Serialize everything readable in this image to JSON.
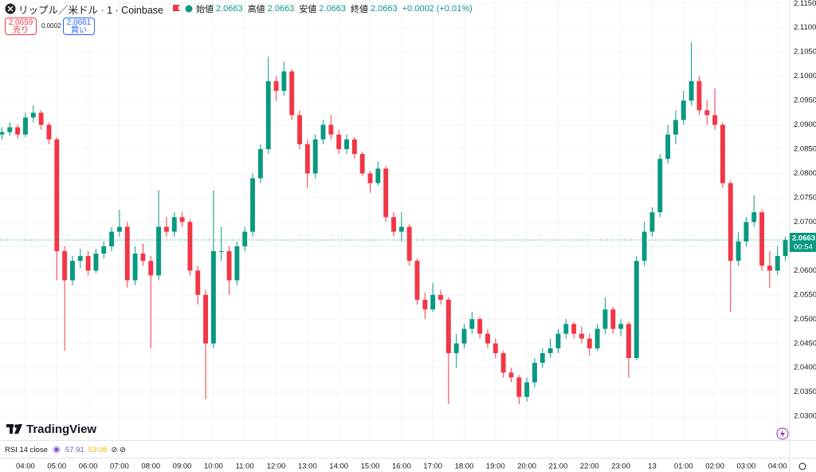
{
  "chart_data": {
    "type": "candlestick",
    "title": "リップル／米ドル · 1 · Coinbase",
    "ohlc_header": {
      "open_label": "始値",
      "open": "2.0663",
      "high_label": "高値",
      "high": "2.0663",
      "low_label": "安値",
      "low": "2.0663",
      "close_label": "終値",
      "close": "2.0663",
      "change": "+0.0002 (+0.01%)"
    },
    "sell": {
      "price": "2.0659",
      "label": "売り"
    },
    "spread": "0.0002",
    "buy": {
      "price": "2.0661",
      "label": "買い"
    },
    "last_price": 2.0663,
    "countdown": "00:54",
    "indicator": {
      "name": "RSI 14 close",
      "value1": "57.91",
      "value2": "53.08"
    },
    "brand": "TradingView",
    "up_color": "#089981",
    "down_color": "#f23645",
    "grid": true,
    "ylim": [
      2.0251,
      2.1157
    ],
    "yticks": [
      {
        "value": 2.03,
        "label": "2.0300"
      },
      {
        "value": 2.035,
        "label": "2.0350"
      },
      {
        "value": 2.04,
        "label": "2.0400"
      },
      {
        "value": 2.045,
        "label": "2.0450"
      },
      {
        "value": 2.05,
        "label": "2.0500"
      },
      {
        "value": 2.055,
        "label": "2.0550"
      },
      {
        "value": 2.06,
        "label": "2.0600"
      },
      {
        "value": 2.065,
        "label": "2.0650"
      },
      {
        "value": 2.07,
        "label": "2.0700"
      },
      {
        "value": 2.075,
        "label": "2.0750"
      },
      {
        "value": 2.08,
        "label": "2.0800"
      },
      {
        "value": 2.085,
        "label": "2.0850"
      },
      {
        "value": 2.09,
        "label": "2.0900"
      },
      {
        "value": 2.095,
        "label": "2.0950"
      },
      {
        "value": 2.1,
        "label": "2.1000"
      },
      {
        "value": 2.105,
        "label": "2.1050"
      },
      {
        "value": 2.11,
        "label": "2.1100"
      },
      {
        "value": 2.115,
        "label": "2.1150"
      }
    ],
    "xlim": [
      -0.25,
      100.45
    ],
    "xticks": [
      {
        "value": 3,
        "label": "04:00"
      },
      {
        "value": 7,
        "label": "05:00"
      },
      {
        "value": 11,
        "label": "06:00"
      },
      {
        "value": 15,
        "label": "07:00"
      },
      {
        "value": 19,
        "label": "08:00"
      },
      {
        "value": 23,
        "label": "09:00"
      },
      {
        "value": 27,
        "label": "10:00"
      },
      {
        "value": 31,
        "label": "11:00"
      },
      {
        "value": 35,
        "label": "12:00"
      },
      {
        "value": 39,
        "label": "13:00"
      },
      {
        "value": 43,
        "label": "14:00"
      },
      {
        "value": 47,
        "label": "15:00"
      },
      {
        "value": 51,
        "label": "16:00"
      },
      {
        "value": 55,
        "label": "17:00"
      },
      {
        "value": 59,
        "label": "18:00"
      },
      {
        "value": 63,
        "label": "19:00"
      },
      {
        "value": 67,
        "label": "20:00"
      },
      {
        "value": 71,
        "label": "21:00"
      },
      {
        "value": 75,
        "label": "22:00"
      },
      {
        "value": 79,
        "label": "23:00"
      },
      {
        "value": 83,
        "label": "13"
      },
      {
        "value": 87,
        "label": "01:00"
      },
      {
        "value": 91,
        "label": "02:00"
      },
      {
        "value": 95,
        "label": "03:00"
      },
      {
        "value": 99,
        "label": "04:00"
      }
    ],
    "ohlc": [
      [
        2.088,
        2.0895,
        2.087,
        2.0885
      ],
      [
        2.0885,
        2.0905,
        2.0878,
        2.0895
      ],
      [
        2.0895,
        2.09,
        2.0872,
        2.088
      ],
      [
        2.088,
        2.0925,
        2.0875,
        2.0915
      ],
      [
        2.0915,
        2.094,
        2.0905,
        2.0925
      ],
      [
        2.0925,
        2.093,
        2.089,
        2.09
      ],
      [
        2.09,
        2.0905,
        2.086,
        2.087
      ],
      [
        2.087,
        2.0875,
        2.058,
        2.064
      ],
      [
        2.064,
        2.065,
        2.0435,
        2.058
      ],
      [
        2.058,
        2.063,
        2.057,
        2.062
      ],
      [
        2.062,
        2.0645,
        2.0605,
        2.063
      ],
      [
        2.063,
        2.064,
        2.059,
        2.06
      ],
      [
        2.06,
        2.0645,
        2.0595,
        2.0635
      ],
      [
        2.0635,
        2.066,
        2.0625,
        2.065
      ],
      [
        2.065,
        2.069,
        2.064,
        2.068
      ],
      [
        2.068,
        2.0725,
        2.067,
        2.069
      ],
      [
        2.069,
        2.07,
        2.0565,
        2.058
      ],
      [
        2.058,
        2.065,
        2.057,
        2.0635
      ],
      [
        2.0635,
        2.0655,
        2.061,
        2.062
      ],
      [
        2.062,
        2.063,
        2.044,
        2.059
      ],
      [
        2.059,
        2.0765,
        2.058,
        2.069
      ],
      [
        2.069,
        2.071,
        2.067,
        2.068
      ],
      [
        2.068,
        2.072,
        2.067,
        2.071
      ],
      [
        2.071,
        2.072,
        2.069,
        2.07
      ],
      [
        2.07,
        2.0705,
        2.059,
        2.06
      ],
      [
        2.06,
        2.061,
        2.053,
        2.055
      ],
      [
        2.055,
        2.056,
        2.0335,
        2.045
      ],
      [
        2.045,
        2.0765,
        2.044,
        2.064
      ],
      [
        2.064,
        2.069,
        2.062,
        2.064
      ],
      [
        2.064,
        2.065,
        2.055,
        2.058
      ],
      [
        2.058,
        2.066,
        2.057,
        2.065
      ],
      [
        2.065,
        2.069,
        2.064,
        2.068
      ],
      [
        2.068,
        2.08,
        2.067,
        2.079
      ],
      [
        2.079,
        2.086,
        2.078,
        2.085
      ],
      [
        2.085,
        2.104,
        2.084,
        2.099
      ],
      [
        2.099,
        2.1,
        2.095,
        2.097
      ],
      [
        2.097,
        2.103,
        2.096,
        2.101
      ],
      [
        2.101,
        2.1015,
        2.091,
        2.092
      ],
      [
        2.092,
        2.093,
        2.085,
        2.086
      ],
      [
        2.086,
        2.087,
        2.077,
        2.08
      ],
      [
        2.08,
        2.088,
        2.079,
        2.087
      ],
      [
        2.087,
        2.091,
        2.086,
        2.09
      ],
      [
        2.09,
        2.092,
        2.087,
        2.088
      ],
      [
        2.088,
        2.089,
        2.084,
        2.085
      ],
      [
        2.085,
        2.088,
        2.084,
        2.087
      ],
      [
        2.087,
        2.0875,
        2.083,
        2.084
      ],
      [
        2.084,
        2.0845,
        2.0795,
        2.08
      ],
      [
        2.08,
        2.0805,
        2.076,
        2.078
      ],
      [
        2.078,
        2.0825,
        2.0775,
        2.081
      ],
      [
        2.081,
        2.0815,
        2.07,
        2.071
      ],
      [
        2.071,
        2.072,
        2.067,
        2.068
      ],
      [
        2.068,
        2.072,
        2.066,
        2.069
      ],
      [
        2.069,
        2.0695,
        2.061,
        2.062
      ],
      [
        2.062,
        2.0625,
        2.053,
        2.054
      ],
      [
        2.054,
        2.0555,
        2.05,
        2.052
      ],
      [
        2.052,
        2.0575,
        2.0515,
        2.055
      ],
      [
        2.055,
        2.056,
        2.053,
        2.054
      ],
      [
        2.054,
        2.0545,
        2.0325,
        2.043
      ],
      [
        2.043,
        2.047,
        2.04,
        2.045
      ],
      [
        2.045,
        2.049,
        2.044,
        2.048
      ],
      [
        2.048,
        2.0515,
        2.047,
        2.05
      ],
      [
        2.05,
        2.0505,
        2.046,
        2.047
      ],
      [
        2.047,
        2.048,
        2.044,
        2.045
      ],
      [
        2.045,
        2.046,
        2.042,
        2.043
      ],
      [
        2.043,
        2.0435,
        2.038,
        2.039
      ],
      [
        2.039,
        2.04,
        2.037,
        2.038
      ],
      [
        2.038,
        2.0385,
        2.0325,
        2.034
      ],
      [
        2.034,
        2.038,
        2.033,
        2.037
      ],
      [
        2.037,
        2.042,
        2.036,
        2.041
      ],
      [
        2.041,
        2.044,
        2.04,
        2.043
      ],
      [
        2.043,
        2.046,
        2.042,
        2.044
      ],
      [
        2.044,
        2.048,
        2.043,
        2.047
      ],
      [
        2.047,
        2.05,
        2.046,
        2.049
      ],
      [
        2.049,
        2.0495,
        2.046,
        2.047
      ],
      [
        2.047,
        2.0485,
        2.045,
        2.046
      ],
      [
        2.046,
        2.047,
        2.0425,
        2.044
      ],
      [
        2.044,
        2.049,
        2.0435,
        2.048
      ],
      [
        2.048,
        2.0545,
        2.047,
        2.052
      ],
      [
        2.052,
        2.0525,
        2.047,
        2.048
      ],
      [
        2.048,
        2.05,
        2.0465,
        2.049
      ],
      [
        2.049,
        2.0495,
        2.038,
        2.042
      ],
      [
        2.042,
        2.063,
        2.0415,
        2.062
      ],
      [
        2.062,
        2.07,
        2.061,
        2.068
      ],
      [
        2.068,
        2.073,
        2.067,
        2.072
      ],
      [
        2.072,
        2.084,
        2.071,
        2.083
      ],
      [
        2.083,
        2.09,
        2.082,
        2.088
      ],
      [
        2.088,
        2.093,
        2.086,
        2.091
      ],
      [
        2.091,
        2.097,
        2.09,
        2.095
      ],
      [
        2.095,
        2.107,
        2.094,
        2.099
      ],
      [
        2.099,
        2.1,
        2.092,
        2.093
      ],
      [
        2.093,
        2.095,
        2.09,
        2.092
      ],
      [
        2.092,
        2.0975,
        2.089,
        2.09
      ],
      [
        2.09,
        2.0905,
        2.077,
        2.078
      ],
      [
        2.078,
        2.0785,
        2.0515,
        2.062
      ],
      [
        2.062,
        2.068,
        2.061,
        2.066
      ],
      [
        2.066,
        2.071,
        2.065,
        2.07
      ],
      [
        2.07,
        2.0755,
        2.069,
        2.072
      ],
      [
        2.072,
        2.0725,
        2.06,
        2.061
      ],
      [
        2.061,
        2.064,
        2.0565,
        2.06
      ],
      [
        2.06,
        2.065,
        2.059,
        2.063
      ],
      [
        2.063,
        2.067,
        2.062,
        2.0663
      ]
    ]
  }
}
